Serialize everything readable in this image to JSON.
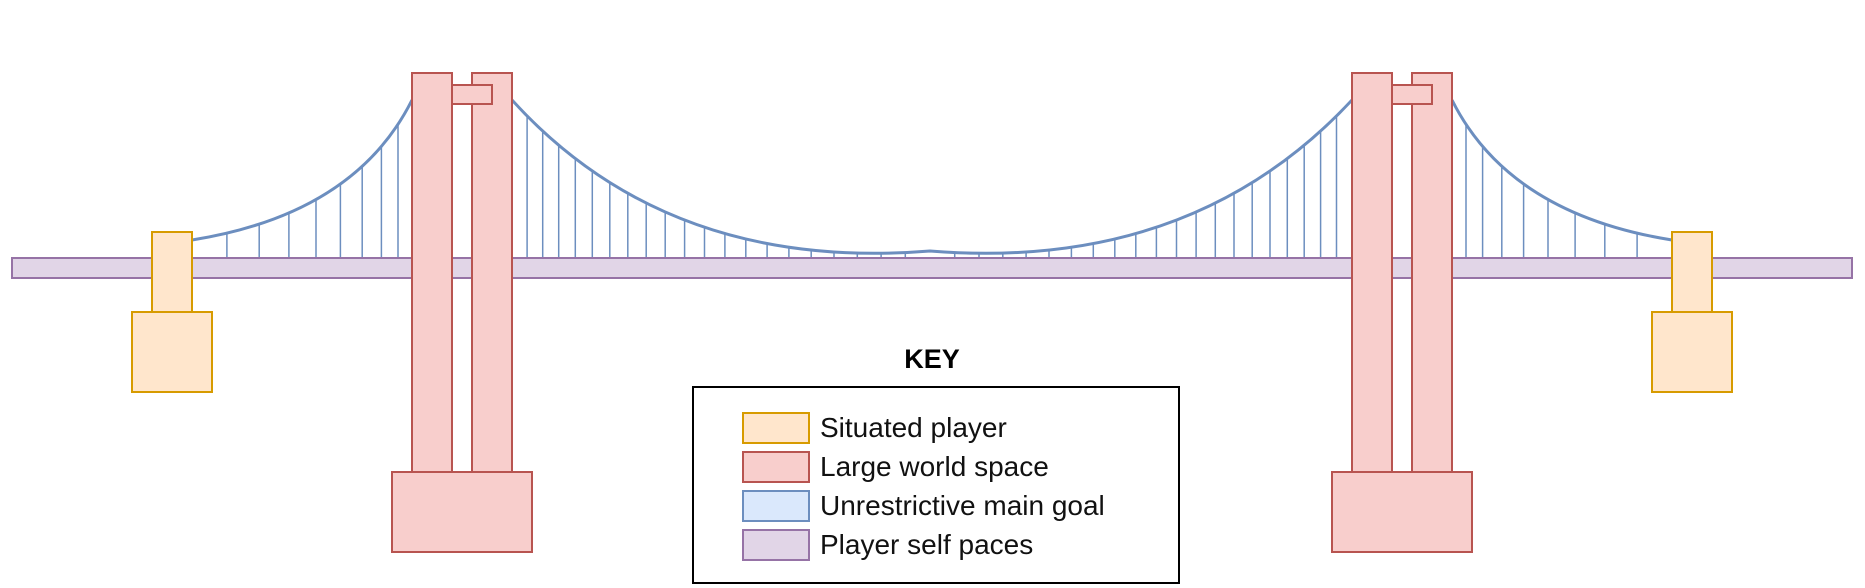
{
  "key": {
    "title": "KEY",
    "items": [
      {
        "label": "Situated player",
        "fill": "#ffe6cc",
        "stroke": "#d79b00"
      },
      {
        "label": "Large world space",
        "fill": "#f8cecc",
        "stroke": "#b85450"
      },
      {
        "label": "Unrestrictive main goal",
        "fill": "#dae8fc",
        "stroke": "#6c8ebf"
      },
      {
        "label": "Player self paces",
        "fill": "#e1d5e7",
        "stroke": "#9673a6"
      }
    ]
  },
  "colors": {
    "abutment_fill": "#ffe6cc",
    "abutment_stroke": "#d79b00",
    "tower_fill": "#f8cecc",
    "tower_stroke": "#b85450",
    "cable_stroke": "#6c8ebf",
    "deck_fill": "#e1d5e7",
    "deck_stroke": "#9673a6"
  }
}
